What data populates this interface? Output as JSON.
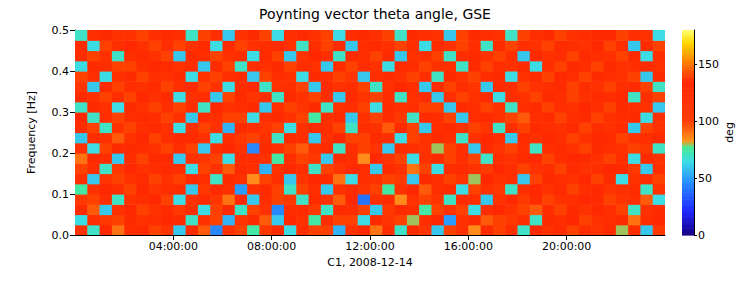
{
  "chart_data": {
    "type": "heatmap",
    "title": "Poynting vector theta angle, GSE",
    "x_label": "C1, 2008-12-14",
    "y_label": "Frequency [Hz]",
    "x_bins": [
      0,
      0.5,
      1,
      1.5,
      2,
      2.5,
      3,
      3.5,
      4,
      4.5,
      5,
      5.5,
      6,
      6.5,
      7,
      7.5,
      8,
      8.5,
      9,
      9.5,
      10,
      10.5,
      11,
      11.5,
      12,
      12.5,
      13,
      13.5,
      14,
      14.5,
      15,
      15.5,
      16,
      16.5,
      17,
      17.5,
      18,
      18.5,
      19,
      19.5,
      20,
      20.5,
      21,
      21.5,
      22,
      22.5,
      23,
      23.5,
      24
    ],
    "y_bins": [
      0,
      0.025,
      0.05,
      0.075,
      0.1,
      0.125,
      0.15,
      0.175,
      0.2,
      0.225,
      0.25,
      0.275,
      0.3,
      0.325,
      0.35,
      0.375,
      0.4,
      0.425,
      0.45,
      0.475,
      0.5
    ],
    "cells": [
      [
        120,
        70,
        135,
        90,
        125,
        130,
        140,
        115,
        60,
        130,
        95,
        45,
        120,
        140,
        75,
        110,
        130,
        65,
        125,
        100,
        140,
        55,
        120,
        135,
        90,
        125,
        70,
        130,
        115,
        60,
        140,
        120,
        85,
        130,
        100,
        125,
        70,
        135,
        120,
        130,
        140,
        125,
        115,
        130,
        80,
        125,
        60,
        110
      ],
      [
        65,
        125,
        110,
        140,
        130,
        120,
        125,
        135,
        130,
        70,
        120,
        140,
        55,
        115,
        130,
        95,
        60,
        135,
        120,
        75,
        125,
        140,
        100,
        65,
        130,
        115,
        140,
        80,
        125,
        135,
        50,
        120,
        130,
        95,
        140,
        110,
        125,
        70,
        130,
        125,
        135,
        140,
        120,
        125,
        130,
        90,
        125,
        135
      ],
      [
        130,
        95,
        60,
        120,
        135,
        140,
        120,
        130,
        110,
        125,
        65,
        100,
        130,
        70,
        140,
        120,
        45,
        125,
        130,
        105,
        70,
        130,
        125,
        140,
        60,
        110,
        130,
        125,
        75,
        140,
        120,
        100,
        65,
        125,
        135,
        120,
        140,
        95,
        125,
        140,
        130,
        120,
        135,
        125,
        140,
        70,
        120,
        130
      ],
      [
        110,
        140,
        125,
        70,
        120,
        125,
        135,
        140,
        65,
        120,
        130,
        115,
        90,
        135,
        60,
        125,
        140,
        110,
        70,
        130,
        120,
        95,
        135,
        40,
        125,
        130,
        85,
        120,
        140,
        115,
        70,
        130,
        125,
        60,
        120,
        135,
        105,
        130,
        140,
        120,
        125,
        135,
        130,
        140,
        115,
        125,
        95,
        65
      ],
      [
        75,
        120,
        135,
        125,
        140,
        135,
        115,
        125,
        130,
        60,
        110,
        135,
        125,
        50,
        120,
        130,
        100,
        70,
        140,
        125,
        60,
        120,
        130,
        115,
        140,
        75,
        120,
        135,
        95,
        125,
        130,
        65,
        140,
        120,
        110,
        70,
        125,
        135,
        120,
        130,
        140,
        125,
        135,
        115,
        125,
        130,
        70,
        120
      ],
      [
        125,
        60,
        115,
        140,
        120,
        130,
        140,
        120,
        100,
        135,
        125,
        70,
        130,
        120,
        85,
        140,
        125,
        60,
        115,
        135,
        130,
        90,
        65,
        125,
        120,
        140,
        105,
        60,
        130,
        125,
        140,
        115,
        80,
        135,
        120,
        125,
        60,
        140,
        130,
        125,
        120,
        135,
        140,
        130,
        65,
        120,
        130,
        140
      ],
      [
        140,
        125,
        70,
        110,
        135,
        120,
        125,
        130,
        125,
        65,
        140,
        120,
        95,
        130,
        125,
        55,
        120,
        135,
        125,
        70,
        140,
        115,
        130,
        125,
        60,
        130,
        120,
        90,
        140,
        65,
        125,
        130,
        120,
        105,
        135,
        125,
        140,
        120,
        125,
        140,
        130,
        120,
        125,
        135,
        130,
        110,
        60,
        125
      ],
      [
        90,
        130,
        125,
        60,
        125,
        140,
        130,
        135,
        60,
        120,
        115,
        140,
        65,
        125,
        130,
        120,
        75,
        125,
        140,
        110,
        60,
        130,
        125,
        85,
        135,
        120,
        140,
        65,
        120,
        130,
        100,
        125,
        140,
        70,
        125,
        120,
        130,
        135,
        140,
        125,
        135,
        130,
        120,
        140,
        125,
        65,
        130,
        120
      ],
      [
        120,
        65,
        140,
        130,
        130,
        125,
        120,
        140,
        125,
        100,
        60,
        125,
        135,
        120,
        45,
        130,
        125,
        140,
        95,
        120,
        130,
        70,
        125,
        140,
        115,
        60,
        130,
        125,
        120,
        80,
        140,
        125,
        60,
        130,
        115,
        140,
        125,
        70,
        125,
        130,
        120,
        140,
        130,
        125,
        120,
        140,
        110,
        70
      ],
      [
        60,
        125,
        120,
        95,
        120,
        135,
        140,
        125,
        135,
        130,
        120,
        65,
        125,
        110,
        140,
        120,
        70,
        130,
        125,
        60,
        120,
        135,
        140,
        100,
        130,
        125,
        65,
        140,
        120,
        130,
        125,
        70,
        120,
        135,
        125,
        60,
        130,
        120,
        135,
        125,
        140,
        120,
        135,
        130,
        140,
        120,
        125,
        130
      ],
      [
        125,
        140,
        70,
        120,
        140,
        125,
        130,
        120,
        65,
        125,
        140,
        120,
        55,
        130,
        125,
        115,
        140,
        65,
        120,
        130,
        125,
        140,
        70,
        125,
        120,
        95,
        130,
        140,
        60,
        125,
        130,
        120,
        140,
        115,
        70,
        125,
        140,
        130,
        125,
        120,
        130,
        140,
        125,
        120,
        130,
        60,
        140,
        120
      ],
      [
        135,
        70,
        125,
        140,
        125,
        130,
        125,
        140,
        120,
        60,
        130,
        125,
        140,
        100,
        65,
        125,
        130,
        120,
        140,
        75,
        125,
        130,
        60,
        120,
        140,
        125,
        110,
        70,
        130,
        125,
        140,
        60,
        125,
        130,
        120,
        140,
        95,
        125,
        130,
        140,
        125,
        130,
        140,
        120,
        125,
        130,
        65,
        125
      ],
      [
        70,
        130,
        120,
        65,
        130,
        120,
        140,
        125,
        140,
        125,
        70,
        135,
        120,
        125,
        130,
        60,
        125,
        140,
        115,
        130,
        70,
        120,
        125,
        140,
        65,
        130,
        120,
        125,
        140,
        100,
        60,
        130,
        125,
        140,
        120,
        70,
        125,
        130,
        140,
        125,
        120,
        135,
        125,
        140,
        130,
        125,
        120,
        60
      ],
      [
        130,
        120,
        140,
        125,
        140,
        135,
        120,
        130,
        65,
        120,
        125,
        60,
        140,
        130,
        115,
        125,
        70,
        130,
        120,
        140,
        125,
        60,
        130,
        115,
        140,
        125,
        70,
        120,
        130,
        60,
        125,
        140,
        120,
        130,
        65,
        125,
        120,
        140,
        130,
        125,
        140,
        120,
        130,
        125,
        135,
        70,
        125,
        140
      ],
      [
        115,
        60,
        130,
        140,
        125,
        120,
        130,
        140,
        125,
        130,
        140,
        120,
        65,
        125,
        135,
        70,
        120,
        125,
        140,
        60,
        130,
        120,
        125,
        140,
        70,
        120,
        135,
        125,
        60,
        130,
        140,
        125,
        115,
        60,
        130,
        125,
        140,
        120,
        125,
        130,
        140,
        125,
        120,
        140,
        125,
        130,
        140,
        70
      ],
      [
        140,
        125,
        65,
        120,
        130,
        140,
        125,
        120,
        130,
        65,
        120,
        140,
        125,
        130,
        60,
        140,
        125,
        120,
        65,
        130,
        125,
        140,
        115,
        60,
        125,
        130,
        120,
        140,
        125,
        70,
        130,
        120,
        140,
        125,
        130,
        65,
        120,
        130,
        140,
        135,
        125,
        140,
        130,
        125,
        120,
        140,
        60,
        130
      ],
      [
        65,
        130,
        125,
        140,
        140,
        125,
        135,
        130,
        120,
        125,
        60,
        130,
        140,
        70,
        125,
        120,
        130,
        140,
        125,
        120,
        60,
        130,
        140,
        125,
        120,
        65,
        130,
        125,
        140,
        120,
        125,
        70,
        130,
        140,
        125,
        120,
        130,
        65,
        125,
        140,
        130,
        125,
        140,
        130,
        120,
        125,
        130,
        120
      ],
      [
        125,
        140,
        120,
        70,
        125,
        130,
        120,
        140,
        60,
        130,
        125,
        140,
        120,
        125,
        65,
        130,
        140,
        60,
        120,
        135,
        125,
        70,
        130,
        125,
        140,
        130,
        60,
        120,
        125,
        140,
        70,
        125,
        130,
        120,
        140,
        125,
        60,
        130,
        120,
        125,
        140,
        130,
        125,
        120,
        140,
        130,
        65,
        125
      ],
      [
        130,
        65,
        140,
        125,
        135,
        120,
        140,
        125,
        140,
        120,
        130,
        65,
        130,
        140,
        120,
        125,
        130,
        120,
        70,
        125,
        140,
        130,
        60,
        125,
        130,
        120,
        140,
        125,
        65,
        130,
        120,
        140,
        125,
        70,
        130,
        140,
        125,
        120,
        140,
        130,
        125,
        120,
        135,
        140,
        125,
        60,
        130,
        140
      ],
      [
        70,
        125,
        130,
        120,
        120,
        140,
        125,
        130,
        125,
        70,
        140,
        125,
        60,
        120,
        130,
        140,
        65,
        125,
        130,
        120,
        140,
        65,
        125,
        130,
        120,
        140,
        70,
        130,
        125,
        120,
        60,
        140,
        130,
        125,
        120,
        70,
        140,
        125,
        130,
        140,
        120,
        125,
        130,
        135,
        140,
        125,
        120,
        65
      ]
    ],
    "xlim": [
      0,
      24
    ],
    "xticks": [
      {
        "value": 4,
        "label": "04:00:00"
      },
      {
        "value": 8,
        "label": "08:00:00"
      },
      {
        "value": 12,
        "label": "12:00:00"
      },
      {
        "value": 16,
        "label": "16:00:00"
      },
      {
        "value": 20,
        "label": "20:00:00"
      }
    ],
    "ylim": [
      0,
      0.5
    ],
    "yticks": [
      {
        "value": 0,
        "label": "0.0"
      },
      {
        "value": 0.1,
        "label": "0.1"
      },
      {
        "value": 0.2,
        "label": "0.2"
      },
      {
        "value": 0.3,
        "label": "0.3"
      },
      {
        "value": 0.4,
        "label": "0.4"
      },
      {
        "value": 0.5,
        "label": "0.5"
      }
    ],
    "colorbar": {
      "label": "deg",
      "range": [
        0,
        180
      ],
      "ticks": [
        0,
        50,
        100,
        150
      ]
    }
  }
}
